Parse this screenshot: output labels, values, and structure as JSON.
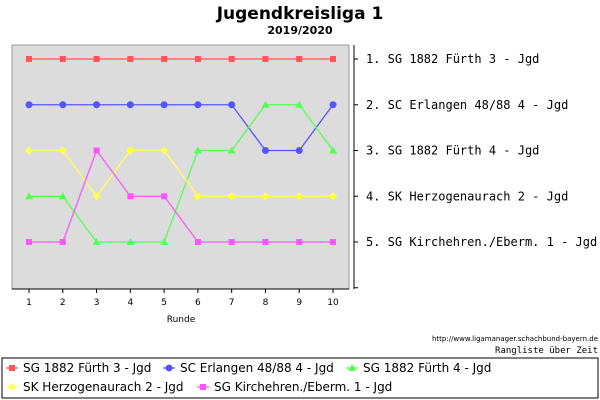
{
  "chart_data": {
    "type": "line",
    "title": "Jugendkreisliga 1",
    "subtitle": "2019/2020",
    "xlabel": "Runde",
    "ylabel": "",
    "x": [
      1,
      2,
      3,
      4,
      5,
      6,
      7,
      8,
      9,
      10
    ],
    "ylim": [
      1,
      6
    ],
    "y_inverted": true,
    "grid": false,
    "legend_position": "bottom",
    "final_ranking": [
      "1. SG 1882 Fürth 3 - Jgd",
      "2. SC Erlangen 48/88 4 - Jgd",
      "3. SG 1882 Fürth 4 - Jgd",
      "4. SK Herzogenaurach 2 - Jgd",
      "5. SG Kirchehren./Eberm. 1 - Jgd"
    ],
    "series": [
      {
        "name": "SG 1882 Fürth 3 - Jgd",
        "color": "#ff5555",
        "marker": "square",
        "values": [
          1,
          1,
          1,
          1,
          1,
          1,
          1,
          1,
          1,
          1
        ]
      },
      {
        "name": "SC Erlangen 48/88 4 - Jgd",
        "color": "#5555ff",
        "marker": "circle",
        "values": [
          2,
          2,
          2,
          2,
          2,
          2,
          2,
          3,
          3,
          2
        ]
      },
      {
        "name": "SG 1882 Fürth 4 - Jgd",
        "color": "#55ff55",
        "marker": "triangle",
        "values": [
          4,
          4,
          5,
          5,
          5,
          3,
          3,
          2,
          2,
          3
        ]
      },
      {
        "name": "SK Herzogenaurach 2 - Jgd",
        "color": "#ffff55",
        "marker": "diamond",
        "values": [
          3,
          3,
          4,
          3,
          3,
          4,
          4,
          4,
          4,
          4
        ]
      },
      {
        "name": "SG Kirchehren./Eberm. 1 - Jgd",
        "color": "#ff55ff",
        "marker": "square",
        "values": [
          5,
          5,
          3,
          4,
          4,
          5,
          5,
          5,
          5,
          5
        ]
      }
    ]
  },
  "footer": {
    "source": "http://www.ligamanager.schachbund-bayern.de",
    "note": "Rangliste über Zeit"
  }
}
